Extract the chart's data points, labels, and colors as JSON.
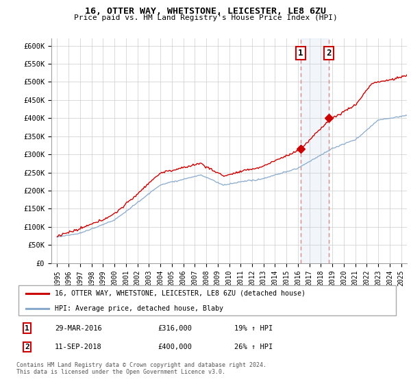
{
  "title1": "16, OTTER WAY, WHETSTONE, LEICESTER, LE8 6ZU",
  "title2": "Price paid vs. HM Land Registry's House Price Index (HPI)",
  "ylabel_ticks": [
    "£0",
    "£50K",
    "£100K",
    "£150K",
    "£200K",
    "£250K",
    "£300K",
    "£350K",
    "£400K",
    "£450K",
    "£500K",
    "£550K",
    "£600K"
  ],
  "ytick_vals": [
    0,
    50000,
    100000,
    150000,
    200000,
    250000,
    300000,
    350000,
    400000,
    450000,
    500000,
    550000,
    600000
  ],
  "xlim": [
    1994.5,
    2025.5
  ],
  "ylim": [
    0,
    620000
  ],
  "xtick_years": [
    1995,
    1996,
    1997,
    1998,
    1999,
    2000,
    2001,
    2002,
    2003,
    2004,
    2005,
    2006,
    2007,
    2008,
    2009,
    2010,
    2011,
    2012,
    2013,
    2014,
    2015,
    2016,
    2017,
    2018,
    2019,
    2020,
    2021,
    2022,
    2023,
    2024,
    2025
  ],
  "sale1_x": 2016.24,
  "sale1_y": 316000,
  "sale2_x": 2018.71,
  "sale2_y": 400000,
  "sale1_label": "1",
  "sale2_label": "2",
  "red_color": "#cc0000",
  "blue_color": "#88aacc",
  "vline_color": "#dd8888",
  "shade_color": "#ccddf0",
  "legend_label1": "16, OTTER WAY, WHETSTONE, LEICESTER, LE8 6ZU (detached house)",
  "legend_label2": "HPI: Average price, detached house, Blaby",
  "table_rows": [
    {
      "num": "1",
      "date": "29-MAR-2016",
      "price": "£316,000",
      "change": "19% ↑ HPI"
    },
    {
      "num": "2",
      "date": "11-SEP-2018",
      "price": "£400,000",
      "change": "26% ↑ HPI"
    }
  ],
  "footnote": "Contains HM Land Registry data © Crown copyright and database right 2024.\nThis data is licensed under the Open Government Licence v3.0."
}
